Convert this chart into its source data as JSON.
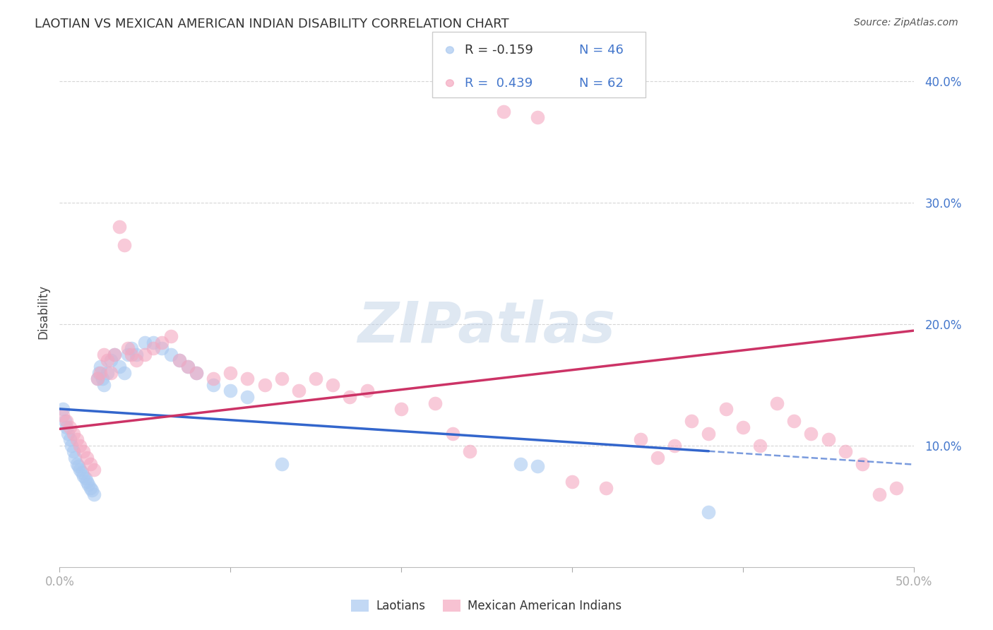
{
  "title": "LAOTIAN VS MEXICAN AMERICAN INDIAN DISABILITY CORRELATION CHART",
  "source": "Source: ZipAtlas.com",
  "ylabel": "Disability",
  "xlim": [
    0.0,
    0.5
  ],
  "ylim": [
    0.0,
    0.42
  ],
  "xticks": [
    0.0,
    0.1,
    0.2,
    0.3,
    0.4,
    0.5
  ],
  "xticklabels": [
    "0.0%",
    "",
    "",
    "",
    "",
    "50.0%"
  ],
  "yticks": [
    0.1,
    0.2,
    0.3,
    0.4
  ],
  "yticklabels": [
    "10.0%",
    "20.0%",
    "30.0%",
    "40.0%"
  ],
  "legend_blue_r": "R = -0.159",
  "legend_blue_n": "N = 46",
  "legend_pink_r": "R =  0.439",
  "legend_pink_n": "N = 62",
  "blue_color": "#a8c8f0",
  "pink_color": "#f4a8c0",
  "blue_line_color": "#3366cc",
  "pink_line_color": "#cc3366",
  "watermark_color": "#b8cce4",
  "background_color": "#ffffff",
  "grid_color": "#cccccc",
  "laotians_label": "Laotians",
  "mexican_label": "Mexican American Indians",
  "blue_x": [
    0.002,
    0.003,
    0.004,
    0.005,
    0.006,
    0.007,
    0.008,
    0.009,
    0.01,
    0.011,
    0.012,
    0.013,
    0.014,
    0.015,
    0.016,
    0.017,
    0.018,
    0.019,
    0.02,
    0.022,
    0.023,
    0.024,
    0.025,
    0.026,
    0.028,
    0.03,
    0.032,
    0.035,
    0.038,
    0.04,
    0.042,
    0.045,
    0.05,
    0.055,
    0.06,
    0.065,
    0.07,
    0.075,
    0.08,
    0.09,
    0.1,
    0.11,
    0.13,
    0.27,
    0.28,
    0.38
  ],
  "blue_y": [
    0.13,
    0.12,
    0.115,
    0.11,
    0.105,
    0.1,
    0.095,
    0.09,
    0.085,
    0.083,
    0.08,
    0.078,
    0.075,
    0.073,
    0.07,
    0.068,
    0.065,
    0.063,
    0.06,
    0.155,
    0.16,
    0.165,
    0.155,
    0.15,
    0.16,
    0.17,
    0.175,
    0.165,
    0.16,
    0.175,
    0.18,
    0.175,
    0.185,
    0.185,
    0.18,
    0.175,
    0.17,
    0.165,
    0.16,
    0.15,
    0.145,
    0.14,
    0.085,
    0.085,
    0.083,
    0.045
  ],
  "pink_x": [
    0.002,
    0.004,
    0.006,
    0.008,
    0.01,
    0.012,
    0.014,
    0.016,
    0.018,
    0.02,
    0.022,
    0.024,
    0.026,
    0.028,
    0.03,
    0.032,
    0.035,
    0.038,
    0.04,
    0.042,
    0.045,
    0.05,
    0.055,
    0.06,
    0.065,
    0.07,
    0.075,
    0.08,
    0.09,
    0.1,
    0.11,
    0.12,
    0.13,
    0.14,
    0.15,
    0.16,
    0.17,
    0.18,
    0.2,
    0.22,
    0.23,
    0.24,
    0.26,
    0.28,
    0.3,
    0.32,
    0.34,
    0.35,
    0.36,
    0.37,
    0.38,
    0.39,
    0.4,
    0.41,
    0.42,
    0.43,
    0.44,
    0.45,
    0.46,
    0.47,
    0.48,
    0.49
  ],
  "pink_y": [
    0.125,
    0.12,
    0.115,
    0.11,
    0.105,
    0.1,
    0.095,
    0.09,
    0.085,
    0.08,
    0.155,
    0.16,
    0.175,
    0.17,
    0.16,
    0.175,
    0.28,
    0.265,
    0.18,
    0.175,
    0.17,
    0.175,
    0.18,
    0.185,
    0.19,
    0.17,
    0.165,
    0.16,
    0.155,
    0.16,
    0.155,
    0.15,
    0.155,
    0.145,
    0.155,
    0.15,
    0.14,
    0.145,
    0.13,
    0.135,
    0.11,
    0.095,
    0.375,
    0.37,
    0.07,
    0.065,
    0.105,
    0.09,
    0.1,
    0.12,
    0.11,
    0.13,
    0.115,
    0.1,
    0.135,
    0.12,
    0.11,
    0.105,
    0.095,
    0.085,
    0.06,
    0.065
  ]
}
